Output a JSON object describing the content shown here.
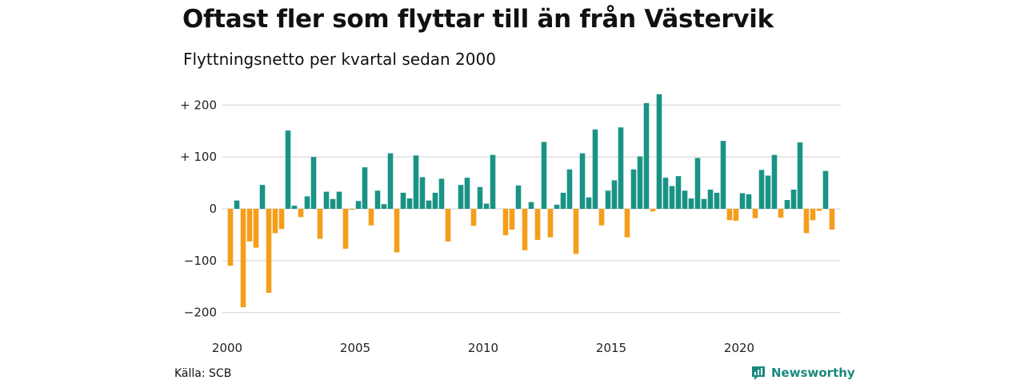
{
  "title": "Oftast fler som flyttar till än från Västervik",
  "subtitle": "Flyttningsnetto per kvartal sedan 2000",
  "source": "Källa: SCB",
  "brand": "Newsworthy",
  "brand_logo_icon": "newsworthy-logo-icon",
  "colors": {
    "positive": "#1a9385",
    "negative": "#f59d1b",
    "grid": "#d9d9d9"
  },
  "chart_data": {
    "type": "bar",
    "title": "Oftast fler som flyttar till än från Västervik",
    "subtitle": "Flyttningsnetto per kvartal sedan 2000",
    "xlabel": "",
    "ylabel": "",
    "ylim": [
      -215,
      225
    ],
    "xlim": [
      2000,
      2024
    ],
    "grid": true,
    "y_ticks": [
      200,
      100,
      0,
      -100,
      -200
    ],
    "y_tick_labels": [
      "+ 200",
      "+ 100",
      "0",
      "−100",
      "−200"
    ],
    "x_ticks": [
      2000,
      2005,
      2010,
      2015,
      2020
    ],
    "x_tick_labels": [
      "2000",
      "2005",
      "2010",
      "2015",
      "2020"
    ],
    "categories": [
      "2000K1",
      "2000K2",
      "2000K3",
      "2000K4",
      "2001K1",
      "2001K2",
      "2001K3",
      "2001K4",
      "2002K1",
      "2002K2",
      "2002K3",
      "2002K4",
      "2003K1",
      "2003K2",
      "2003K3",
      "2003K4",
      "2004K1",
      "2004K2",
      "2004K3",
      "2004K4",
      "2005K1",
      "2005K2",
      "2005K3",
      "2005K4",
      "2006K1",
      "2006K2",
      "2006K3",
      "2006K4",
      "2007K1",
      "2007K2",
      "2007K3",
      "2007K4",
      "2008K1",
      "2008K2",
      "2008K3",
      "2008K4",
      "2009K1",
      "2009K2",
      "2009K3",
      "2009K4",
      "2010K1",
      "2010K2",
      "2010K3",
      "2010K4",
      "2011K1",
      "2011K2",
      "2011K3",
      "2011K4",
      "2012K1",
      "2012K2",
      "2012K3",
      "2012K4",
      "2013K1",
      "2013K2",
      "2013K3",
      "2013K4",
      "2014K1",
      "2014K2",
      "2014K3",
      "2014K4",
      "2015K1",
      "2015K2",
      "2015K3",
      "2015K4",
      "2016K1",
      "2016K2",
      "2016K3",
      "2016K4",
      "2017K1",
      "2017K2",
      "2017K3",
      "2017K4",
      "2018K1",
      "2018K2",
      "2018K3",
      "2018K4",
      "2019K1",
      "2019K2",
      "2019K3",
      "2019K4",
      "2020K1",
      "2020K2",
      "2020K3",
      "2020K4",
      "2021K1",
      "2021K2",
      "2021K3",
      "2021K4",
      "2022K1",
      "2022K2",
      "2022K3",
      "2022K4",
      "2023K1",
      "2023K2",
      "2023K3",
      "2023K4"
    ],
    "values": [
      -110,
      16,
      -190,
      -63,
      -75,
      46,
      -162,
      -47,
      -39,
      151,
      6,
      -16,
      24,
      100,
      -58,
      33,
      19,
      33,
      -77,
      -2,
      15,
      80,
      -32,
      35,
      9,
      107,
      -84,
      31,
      20,
      103,
      61,
      16,
      31,
      58,
      -63,
      0,
      46,
      60,
      -33,
      42,
      10,
      104,
      0,
      -51,
      -40,
      45,
      -80,
      13,
      -60,
      129,
      -55,
      8,
      31,
      76,
      -87,
      107,
      22,
      153,
      -32,
      35,
      55,
      157,
      -55,
      76,
      101,
      204,
      -5,
      221,
      60,
      44,
      63,
      35,
      20,
      98,
      19,
      37,
      31,
      131,
      -22,
      -23,
      30,
      28,
      -18,
      75,
      64,
      104,
      -17,
      17,
      37,
      128,
      -47,
      -22,
      -4,
      73,
      -40,
      0
    ]
  }
}
